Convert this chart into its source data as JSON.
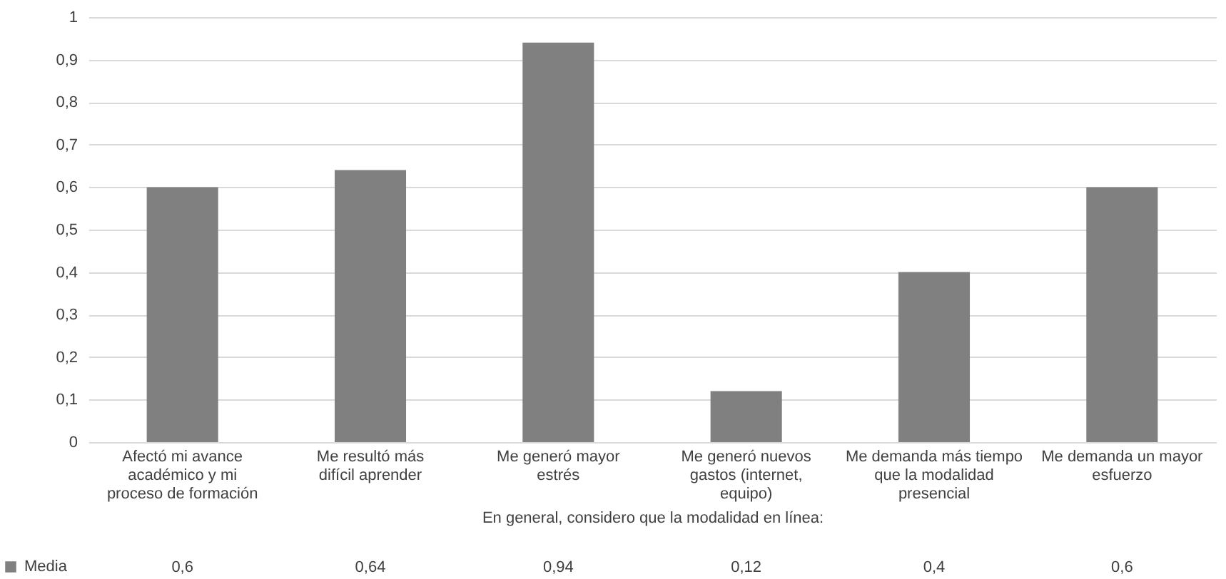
{
  "chart_data": {
    "type": "bar",
    "categories": [
      "Afectó mi avance académico y mi proceso de formación",
      "Me resultó más difícil aprender",
      "Me generó mayor estrés",
      "Me generó nuevos gastos (internet, equipo)",
      "Me demanda más tiempo que la modalidad presencial",
      "Me demanda un mayor esfuerzo"
    ],
    "xlabel": "En general, considero que la modalidad en línea:",
    "series": [
      {
        "name": "Media",
        "color": "#808080",
        "values": [
          0.6,
          0.64,
          0.94,
          0.12,
          0.4,
          0.6
        ],
        "value_labels": [
          "0,6",
          "0,64",
          "0,94",
          "0,12",
          "0,4",
          "0,6"
        ]
      }
    ],
    "ylim": [
      0,
      1
    ],
    "yticks": [
      0,
      {
        "value": 0.1,
        "label": "0,1"
      },
      {
        "value": 0.2,
        "label": "0,2"
      },
      {
        "value": 0.3,
        "label": "0,3"
      },
      {
        "value": 0.4,
        "label": "0,4"
      },
      {
        "value": 0.5,
        "label": "0,5"
      },
      {
        "value": 0.6,
        "label": "0,6"
      },
      {
        "value": 0.7,
        "label": "0,7"
      },
      {
        "value": 0.8,
        "label": "0,8"
      },
      {
        "value": 0.9,
        "label": "0,9"
      },
      1
    ],
    "grid": "y",
    "legend": "bottom left"
  }
}
